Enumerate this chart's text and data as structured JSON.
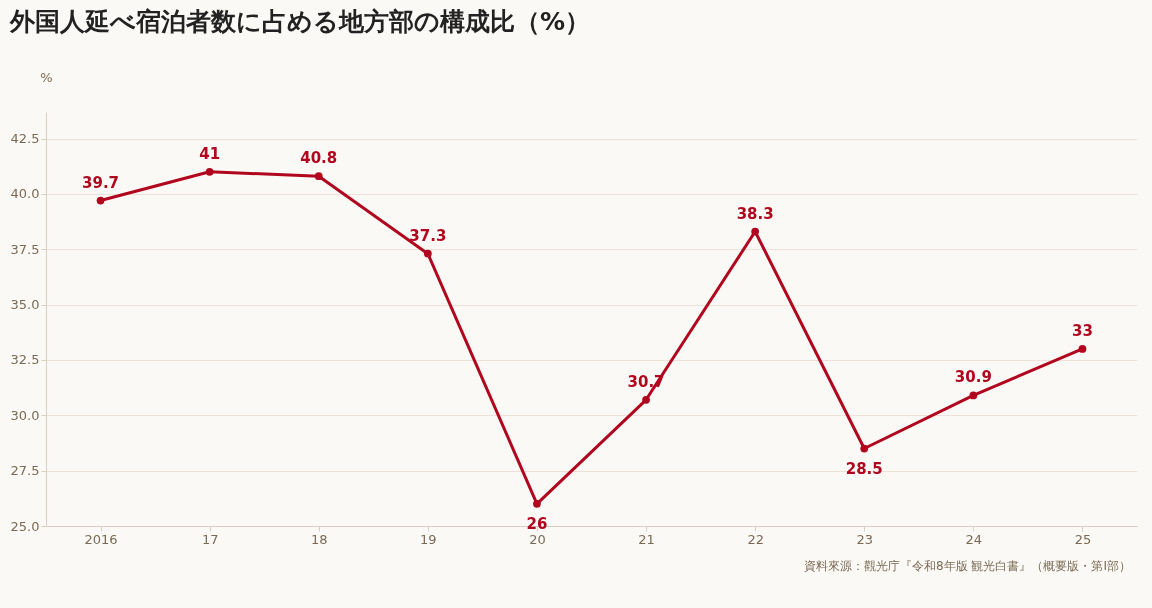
{
  "chart_data": {
    "type": "line",
    "title": "外国人延べ宿泊者数に占める地方部の構成比（%）",
    "ylabel": "%",
    "categories": [
      "2016",
      "17",
      "18",
      "19",
      "20",
      "21",
      "22",
      "23",
      "24",
      "25"
    ],
    "series": [
      {
        "color": "#b0061e",
        "values": [
          39.7,
          41,
          40.8,
          37.3,
          26,
          30.7,
          38.3,
          28.5,
          30.9,
          33
        ]
      }
    ],
    "ylim": [
      25,
      43.7
    ],
    "yticks": [
      {
        "value": 25,
        "label": "25.0"
      },
      {
        "value": 27.5,
        "label": "27.5"
      },
      {
        "value": 30,
        "label": "30.0"
      },
      {
        "value": 32.5,
        "label": "32.5"
      },
      {
        "value": 35,
        "label": "35.0"
      },
      {
        "value": 37.5,
        "label": "37.5"
      },
      {
        "value": 40,
        "label": "40.0"
      },
      {
        "value": 42.5,
        "label": "42.5"
      }
    ],
    "grid": "y",
    "marker": "circle",
    "line_style": "solid",
    "data_labels": true,
    "annotations": [
      "資料來源：觀光庁『令和8年版 観光白書』（概要版・第I部）"
    ]
  }
}
